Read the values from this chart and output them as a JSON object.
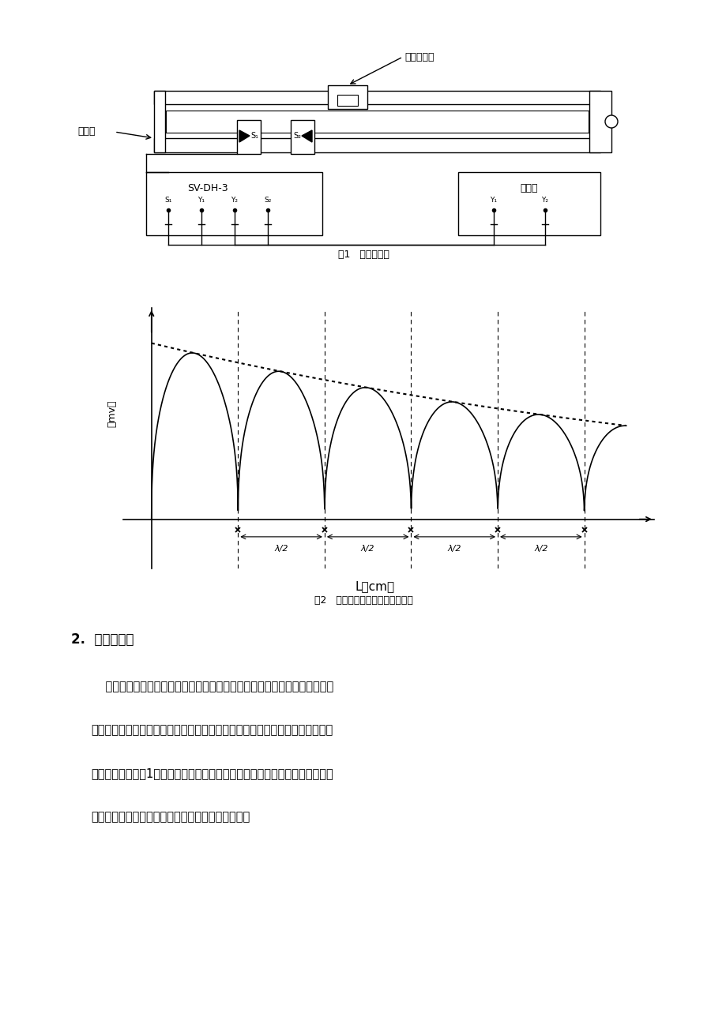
{
  "bg_color": "#ffffff",
  "fig1_caption": "图1   实验装置图",
  "fig2_caption": "图2   接受器表面声压随距离的变化",
  "fig2_ylabel": "（mv）",
  "fig2_xlabel": "L（cm）",
  "section_title": "2.  相位比较法",
  "paragraph1": "    波是振动状态的传播，也可以说是位相的传播。沿波传播方向的任何两点同",
  "paragraph2": "相位时，这两点间的距离就是波长的整数倍。运用这个原理，可以精确的测量波",
  "paragraph3": "长。试验装置如图1所示，沿波的传播方向移动接受器，接受到的信号再次与发",
  "paragraph4": "射器的位相相似时，一国的距离等于与声波的波长。",
  "label_xinghao": "信号源",
  "label_rongshan": "容栅数显尺",
  "label_svdh3": "SV-DH-3",
  "label_shibo": "示波器",
  "lambda_labels": [
    "λ/2",
    "λ/2",
    "λ/2",
    "λ/2"
  ]
}
